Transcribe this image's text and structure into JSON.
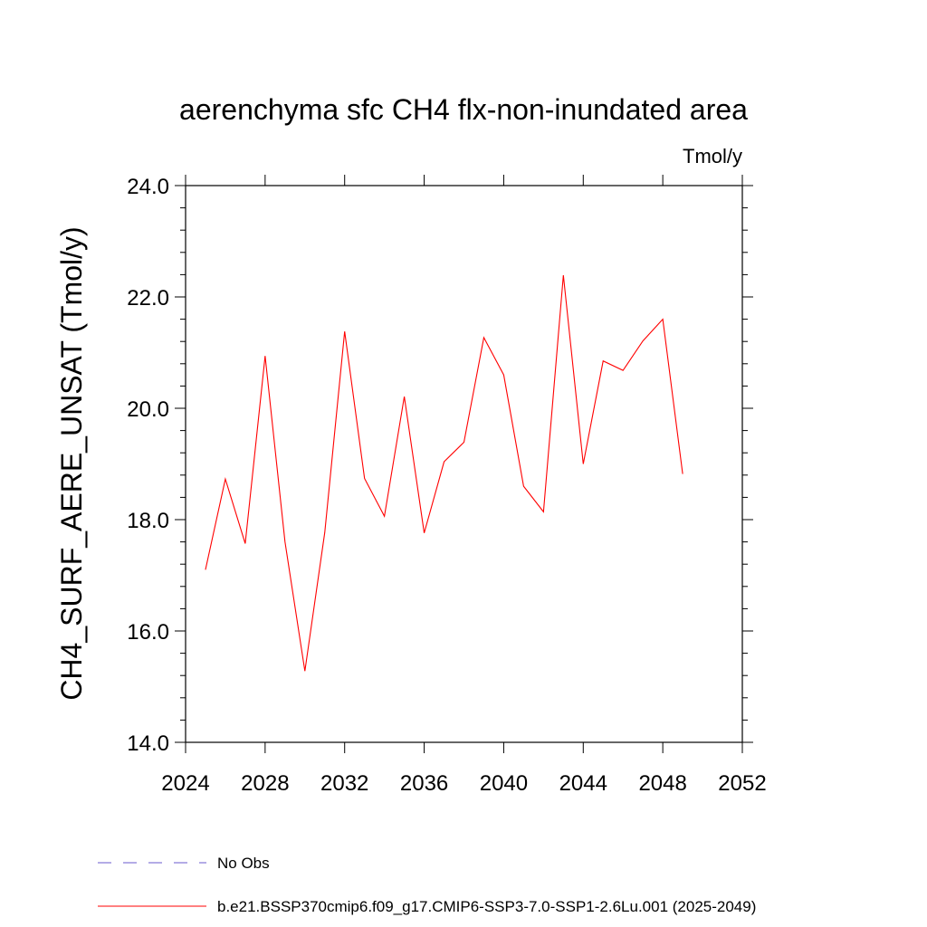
{
  "chart_data": {
    "type": "line",
    "title": "aerenchyma sfc CH4 flx-non-inundated area",
    "units_label": "Tmol/y",
    "ylabel": "CH4_SURF_AERE_UNSAT  (Tmol/y)",
    "xlabel": "",
    "xlim": [
      2024,
      2052
    ],
    "ylim": [
      14.0,
      24.0
    ],
    "x_ticks": [
      "2024",
      "2028",
      "2032",
      "2036",
      "2040",
      "2044",
      "2048",
      "2052"
    ],
    "y_ticks": [
      "14.0",
      "16.0",
      "18.0",
      "20.0",
      "22.0",
      "24.0"
    ],
    "grid": false,
    "legend_position": "bottom",
    "series": [
      {
        "name": "b.e21.BSSP370cmip6.f09_g17.CMIP6-SSP3-7.0-SSP1-2.6Lu.001 (2025-2049)",
        "color": "#ff0000",
        "style": "solid",
        "x": [
          2025,
          2026,
          2027,
          2028,
          2029,
          2030,
          2031,
          2032,
          2033,
          2034,
          2035,
          2036,
          2037,
          2038,
          2039,
          2040,
          2041,
          2042,
          2043,
          2044,
          2045,
          2046,
          2047,
          2048,
          2049
        ],
        "y": [
          17.1,
          18.73,
          17.57,
          20.94,
          17.6,
          15.28,
          17.77,
          21.38,
          18.74,
          18.06,
          20.21,
          17.76,
          19.04,
          19.39,
          21.27,
          20.6,
          18.6,
          18.14,
          22.39,
          19.0,
          20.85,
          20.68,
          21.21,
          21.6,
          18.82
        ]
      }
    ],
    "legend": [
      {
        "label": "No Obs",
        "color": "#6a5acd",
        "style": "dashed"
      },
      {
        "label": "b.e21.BSSP370cmip6.f09_g17.CMIP6-SSP3-7.0-SSP1-2.6Lu.001 (2025-2049)",
        "color": "#ff0000",
        "style": "solid"
      }
    ]
  }
}
